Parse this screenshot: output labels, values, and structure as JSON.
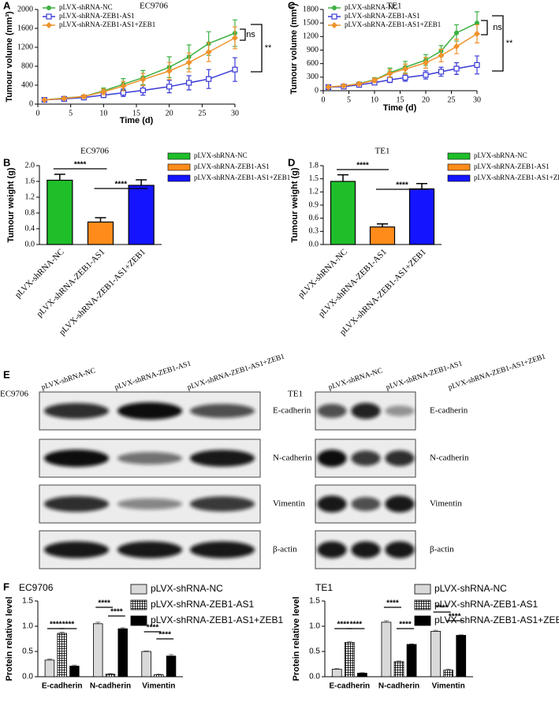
{
  "chart_data": [
    {
      "type": "line",
      "panel_label": "A",
      "title": "EC9706",
      "x_label": "Time (d)",
      "y_label": "Tumour volume (mm³)",
      "x": [
        1,
        4,
        7,
        10,
        13,
        16,
        20,
        23,
        26,
        30
      ],
      "xlim": [
        0,
        30
      ],
      "xticks": [
        0,
        5,
        10,
        15,
        20,
        25,
        30
      ],
      "ylim": [
        0,
        2000
      ],
      "yticks": [
        0,
        400,
        800,
        1200,
        1600,
        2000
      ],
      "series": [
        {
          "name": "pLVX-shRNA-NC",
          "color": "#3cb043",
          "marker": "circle",
          "values": [
            90,
            130,
            160,
            280,
            420,
            560,
            780,
            1000,
            1280,
            1500
          ],
          "errors": [
            10,
            20,
            30,
            60,
            120,
            150,
            220,
            250,
            250,
            280
          ]
        },
        {
          "name": "pLVX-shRNA-ZEB1-AS1",
          "color": "#3a3ad6",
          "marker": "square",
          "values": [
            90,
            110,
            140,
            190,
            240,
            290,
            370,
            450,
            530,
            730
          ],
          "errors": [
            10,
            20,
            30,
            50,
            80,
            100,
            130,
            150,
            200,
            250
          ]
        },
        {
          "name": "pLVX-shRNA-ZEB1-AS1+ZEB1",
          "color": "#f0922c",
          "marker": "diamond",
          "values": [
            90,
            120,
            160,
            260,
            380,
            520,
            700,
            880,
            1100,
            1400
          ],
          "errors": [
            10,
            20,
            30,
            60,
            100,
            130,
            180,
            200,
            200,
            230
          ]
        }
      ],
      "annotations": [
        "ns",
        "**"
      ]
    },
    {
      "type": "line",
      "panel_label": "C",
      "title": "TE1",
      "x_label": "Time (d)",
      "y_label": "Tumour volume (mm³)",
      "x": [
        1,
        4,
        7,
        10,
        13,
        16,
        20,
        23,
        26,
        30
      ],
      "xlim": [
        0,
        30
      ],
      "xticks": [
        0,
        5,
        10,
        15,
        20,
        25,
        30
      ],
      "ylim": [
        0,
        1800
      ],
      "yticks": [
        0,
        300,
        600,
        900,
        1200,
        1500,
        1800
      ],
      "series": [
        {
          "name": "pLVX-shRNA-NC",
          "color": "#3cb043",
          "marker": "circle",
          "values": [
            80,
            100,
            160,
            240,
            400,
            520,
            680,
            880,
            1280,
            1500
          ],
          "errors": [
            10,
            20,
            30,
            50,
            100,
            130,
            120,
            120,
            180,
            250
          ]
        },
        {
          "name": "pLVX-shRNA-ZEB1-AS1",
          "color": "#3a3ad6",
          "marker": "square",
          "values": [
            80,
            90,
            130,
            180,
            240,
            290,
            350,
            420,
            490,
            570
          ],
          "errors": [
            10,
            15,
            25,
            40,
            60,
            80,
            90,
            100,
            130,
            200
          ]
        },
        {
          "name": "pLVX-shRNA-ZEB1-AS1+ZEB1",
          "color": "#f0922c",
          "marker": "diamond",
          "values": [
            80,
            110,
            150,
            230,
            380,
            480,
            620,
            780,
            980,
            1260
          ],
          "errors": [
            10,
            20,
            30,
            50,
            90,
            110,
            120,
            140,
            160,
            200
          ]
        }
      ],
      "annotations": [
        "ns",
        "**"
      ]
    },
    {
      "type": "bar",
      "panel_label": "B",
      "title": "EC9706",
      "y_label": "Tumour weight (g)",
      "categories": [
        "pLVX-shRNA-NC",
        "pLVX-shRNA-ZEB1-AS1",
        "pLVX-shRNA-ZEB1-AS1+ZEB1"
      ],
      "values": [
        1.63,
        0.57,
        1.5
      ],
      "errors": [
        0.15,
        0.11,
        0.14
      ],
      "colors": [
        "#1fbf2a",
        "#ff8c1a",
        "#1414ff"
      ],
      "ylim": [
        0,
        2
      ],
      "yticks": [
        {
          "value": 0,
          "label": "0.0"
        },
        0.4,
        0.8,
        1.2,
        1.6,
        {
          "value": 2,
          "label": "2.0"
        }
      ],
      "annotations": [
        "****",
        "****"
      ]
    },
    {
      "type": "bar",
      "panel_label": "D",
      "title": "TE1",
      "y_label": "Tumour weight (g)",
      "categories": [
        "pLVX-shRNA-NC",
        "pLVX-shRNA-ZEB1-AS1",
        "pLVX-shRNA-ZEB1-AS1+ZEB1"
      ],
      "values": [
        1.44,
        0.4,
        1.27
      ],
      "errors": [
        0.15,
        0.07,
        0.12
      ],
      "colors": [
        "#1fbf2a",
        "#ff8c1a",
        "#1414ff"
      ],
      "ylim": [
        0,
        1.8
      ],
      "yticks": [
        {
          "value": 0,
          "label": "0.0"
        },
        0.3,
        0.6,
        0.9,
        1.2,
        1.5,
        1.8
      ],
      "annotations": [
        "****",
        "****"
      ]
    },
    {
      "type": "bar",
      "panel_label": "F",
      "title": "EC9706",
      "y_label": "Protein relative level",
      "categories": [
        "E-cadherin",
        "N-cadherin",
        "Vimentin"
      ],
      "series": [
        {
          "name": "pLVX-shRNA-NC",
          "color": "#d9d9d9",
          "values": [
            0.33,
            1.05,
            0.5
          ],
          "errors": [
            0.02,
            0.03,
            0.01
          ]
        },
        {
          "name": "pLVX-shRNA-ZEB1-AS1",
          "color": "#333333",
          "pattern": "grid",
          "values": [
            0.86,
            0.05,
            0.04
          ],
          "errors": [
            0.02,
            0.01,
            0.01
          ]
        },
        {
          "name": "pLVX-shRNA-ZEB1-AS1+ZEB1",
          "color": "#000000",
          "values": [
            0.21,
            0.95,
            0.41
          ],
          "errors": [
            0.02,
            0.02,
            0.03
          ]
        }
      ],
      "ylim": [
        0,
        1.5
      ],
      "yticks": [
        {
          "value": 0,
          "label": "0.0"
        },
        0.5,
        {
          "value": 1,
          "label": "1.0"
        },
        1.5
      ],
      "annotations": [
        "****",
        "****",
        "****",
        "****",
        "****",
        "****"
      ]
    },
    {
      "type": "bar",
      "title": "TE1",
      "y_label": "Protein relative level",
      "categories": [
        "E-cadherin",
        "N-cadherin",
        "Vimentin"
      ],
      "series": [
        {
          "name": "pLVX-shRNA-NC",
          "color": "#d9d9d9",
          "values": [
            0.15,
            1.08,
            0.9
          ],
          "errors": [
            0.01,
            0.03,
            0.02
          ]
        },
        {
          "name": "pLVX-shRNA-ZEB1-AS1",
          "color": "#333333",
          "pattern": "grid",
          "values": [
            0.68,
            0.3,
            0.13
          ],
          "errors": [
            0.01,
            0.01,
            0.02
          ]
        },
        {
          "name": "pLVX-shRNA-ZEB1-AS1+ZEB1",
          "color": "#000000",
          "values": [
            0.07,
            0.64,
            0.82
          ],
          "errors": [
            0.01,
            0.01,
            0.01
          ]
        }
      ],
      "ylim": [
        0,
        1.5
      ],
      "yticks": [
        {
          "value": 0,
          "label": "0.0"
        },
        0.5,
        {
          "value": 1,
          "label": "1.0"
        },
        1.5
      ],
      "annotations": [
        "****",
        "****",
        "****",
        "****",
        "****",
        "****"
      ]
    }
  ],
  "blots": {
    "panel_label": "E",
    "groups": [
      {
        "cell_line": "EC9706",
        "lanes": [
          "pLVX-shRNA-NC",
          "pLVX-shRNA-ZEB1-AS1",
          "pLVX-shRNA-ZEB1-AS1+ZEB1"
        ],
        "proteins": [
          "E-cadherin",
          "N-cadherin",
          "Vimentin",
          "β-actin"
        ]
      },
      {
        "cell_line": "TE1",
        "lanes": [
          "pLVX-shRNA-NC",
          "pLVX-shRNA-ZEB1-AS1",
          "pLVX-shRNA-ZEB1-AS1+ZEB1"
        ],
        "proteins": [
          "E-cadherin",
          "N-cadherin",
          "Vimentin",
          "β-actin"
        ]
      }
    ]
  }
}
